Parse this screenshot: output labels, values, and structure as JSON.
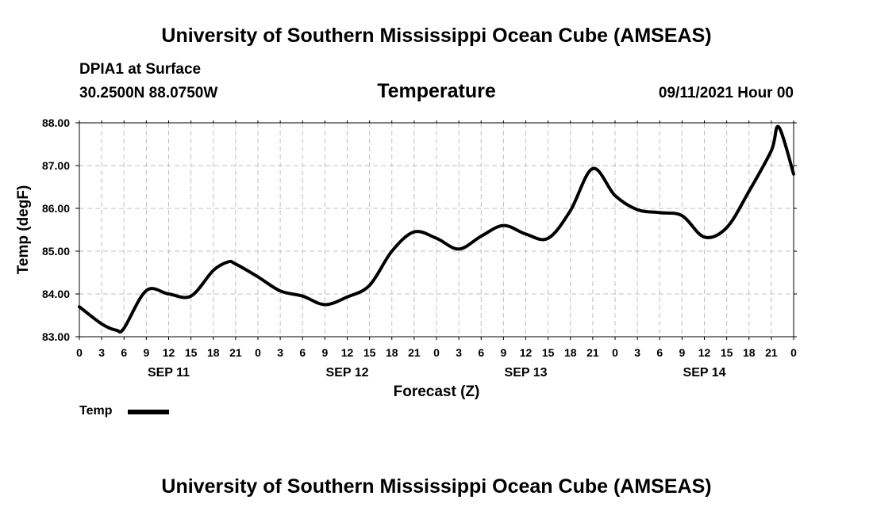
{
  "header": {
    "title": "University of Southern Mississippi Ocean Cube (AMSEAS)",
    "station": "DPIA1 at Surface",
    "coords": "30.2500N  88.0750W",
    "chart_title": "Temperature",
    "timestamp": "09/11/2021 Hour 00"
  },
  "footer": {
    "title": "University of Southern Mississippi Ocean Cube (AMSEAS)"
  },
  "legend": {
    "label": "Temp"
  },
  "colors": {
    "line": "#000000",
    "grid": "#c0c0c0"
  },
  "chart_data": {
    "type": "line",
    "title": "Temperature",
    "xlabel": "Forecast (Z)",
    "ylabel": "Temp (degF)",
    "ylim": [
      83.0,
      88.0
    ],
    "xlim": [
      0,
      96
    ],
    "y_ticks": [
      "83.00",
      "84.00",
      "85.00",
      "86.00",
      "87.00",
      "88.00"
    ],
    "x_tick_labels": [
      "0",
      "3",
      "6",
      "9",
      "12",
      "15",
      "18",
      "21",
      "0",
      "3",
      "6",
      "9",
      "12",
      "15",
      "18",
      "21",
      "0",
      "3",
      "6",
      "9",
      "12",
      "15",
      "18",
      "21",
      "0",
      "3",
      "6",
      "9",
      "12",
      "15",
      "18",
      "21",
      "0"
    ],
    "date_labels": [
      {
        "label": "SEP 11",
        "hour": 12
      },
      {
        "label": "SEP 12",
        "hour": 36
      },
      {
        "label": "SEP 13",
        "hour": 60
      },
      {
        "label": "SEP 14",
        "hour": 84
      }
    ],
    "grid": true,
    "series": [
      {
        "name": "Temp",
        "x": [
          0,
          3,
          5,
          6,
          9,
          12,
          15,
          18,
          20,
          21,
          24,
          27,
          30,
          33,
          36,
          39,
          42,
          45,
          48,
          51,
          54,
          57,
          60,
          63,
          66,
          69,
          72,
          75,
          78,
          81,
          84,
          87,
          90,
          93,
          94,
          96
        ],
        "values": [
          83.7,
          83.3,
          83.15,
          83.2,
          84.08,
          84.0,
          83.95,
          84.55,
          84.75,
          84.7,
          84.4,
          84.07,
          83.95,
          83.75,
          83.93,
          84.2,
          85.0,
          85.45,
          85.3,
          85.05,
          85.35,
          85.6,
          85.4,
          85.3,
          85.95,
          86.93,
          86.3,
          85.97,
          85.9,
          85.83,
          85.33,
          85.55,
          86.4,
          87.35,
          87.9,
          86.8
        ]
      }
    ]
  }
}
